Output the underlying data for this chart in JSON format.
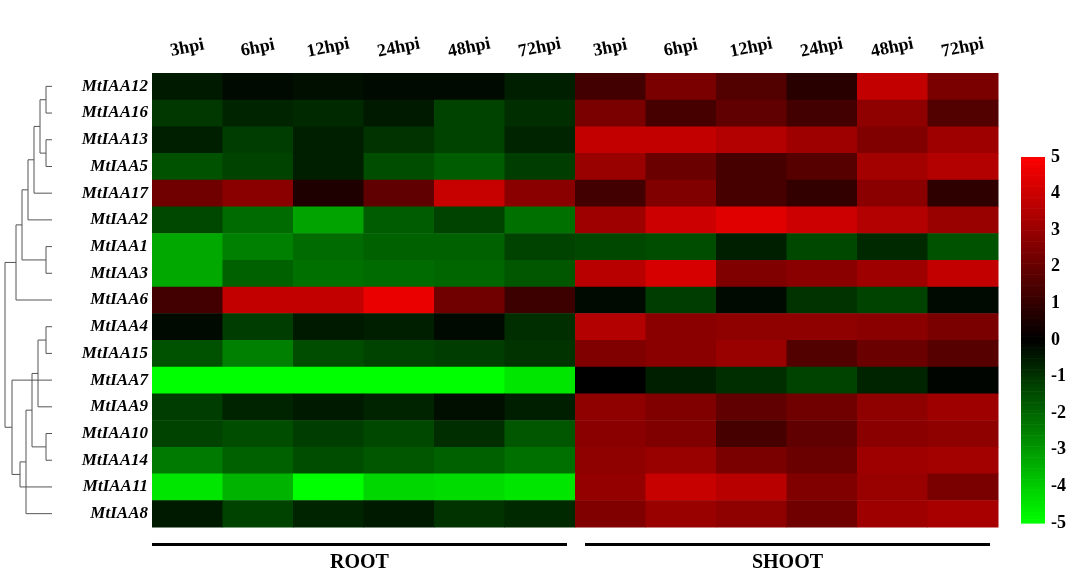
{
  "chart_data": {
    "type": "heatmap",
    "categories": [
      "3hpi",
      "6hpi",
      "12hpi",
      "24hpi",
      "48hpi",
      "72hpi",
      "3hpi",
      "6hpi",
      "12hpi",
      "24hpi",
      "48hpi",
      "72hpi"
    ],
    "y_categories": [
      "MtIAA12",
      "MtIAA16",
      "MtIAA13",
      "MtIAA5",
      "MtIAA17",
      "MtIAA2",
      "MtIAA1",
      "MtIAA3",
      "MtIAA6",
      "MtIAA4",
      "MtIAA15",
      "MtIAA7",
      "MtIAA9",
      "MtIAA10",
      "MtIAA14",
      "MtIAA11",
      "MtIAA8"
    ],
    "cells": [
      [
        -0.5,
        -0.2,
        -0.3,
        -0.2,
        -0.2,
        -0.6,
        1.3,
        2.4,
        1.6,
        0.8,
        3.8,
        2.4
      ],
      [
        -1.1,
        -0.7,
        -0.8,
        -0.5,
        -1.3,
        -0.9,
        2.4,
        1.4,
        1.9,
        1.3,
        2.8,
        1.6
      ],
      [
        -0.6,
        -1.2,
        -0.6,
        -1,
        -1.3,
        -0.7,
        3.8,
        3.8,
        3.5,
        3.1,
        2.5,
        3.1
      ],
      [
        -1.6,
        -1.3,
        -0.6,
        -1.5,
        -1.8,
        -1.2,
        3,
        2.1,
        1.4,
        1.7,
        3.2,
        3.5
      ],
      [
        2.2,
        2.7,
        0.6,
        1.9,
        3.9,
        2.7,
        1.3,
        2.5,
        1.4,
        1,
        2.7,
        0.9
      ],
      [
        -1.4,
        -2.1,
        -3.2,
        -1.8,
        -1.3,
        -2.2,
        3.1,
        4,
        4.4,
        4,
        3.5,
        3
      ],
      [
        -3.3,
        -2.5,
        -2.1,
        -1.9,
        -1.9,
        -1.3,
        -1.4,
        -1.5,
        -0.6,
        -1.4,
        -0.8,
        -1.6
      ],
      [
        -3.3,
        -1.9,
        -2.2,
        -2.1,
        -2,
        -1.7,
        3.6,
        4.2,
        2.5,
        2.7,
        3.1,
        3.8
      ],
      [
        1.3,
        3.8,
        3.8,
        4.6,
        2.2,
        1.2,
        -0.2,
        -1.2,
        -0.2,
        -1,
        -1.3,
        -0.2
      ],
      [
        -0.2,
        -1.2,
        -0.5,
        -0.6,
        -0.2,
        -0.9,
        3.5,
        2.7,
        2.8,
        2.8,
        2.7,
        2.4
      ],
      [
        -1.6,
        -2.5,
        -1.5,
        -1.3,
        -1.2,
        -1,
        2.5,
        2.7,
        3,
        1.6,
        2.1,
        1.7
      ],
      [
        -5,
        -5,
        -5,
        -5,
        -5,
        -4.5,
        0,
        -0.6,
        -0.9,
        -1.3,
        -0.7,
        -0.1
      ],
      [
        -1.2,
        -0.7,
        -0.5,
        -0.7,
        -0.3,
        -0.6,
        2.8,
        2.5,
        1.9,
        2.2,
        2.8,
        3.1
      ],
      [
        -1.3,
        -1.5,
        -1.2,
        -1.4,
        -0.9,
        -1.7,
        2.7,
        2.5,
        1.4,
        1.9,
        2.7,
        2.8
      ],
      [
        -2.4,
        -1.9,
        -1.5,
        -1.7,
        -1.9,
        -2.2,
        2.8,
        3,
        2.4,
        2.1,
        3.1,
        3.2
      ],
      [
        -4.5,
        -3.5,
        -5,
        -4.2,
        -4.3,
        -4.5,
        2.9,
        3.9,
        3.6,
        2.5,
        3,
        2.4
      ],
      [
        -0.5,
        -1.3,
        -0.7,
        -0.5,
        -1,
        -0.8,
        2.5,
        3,
        2.8,
        2.2,
        3.1,
        3.3
      ]
    ],
    "clim": [
      -5,
      5
    ],
    "cticks": [
      5,
      4,
      3,
      2,
      1,
      0,
      -1,
      -2,
      -3,
      -4,
      -5
    ],
    "annotations": [
      "ROOT",
      "SHOOT"
    ]
  }
}
